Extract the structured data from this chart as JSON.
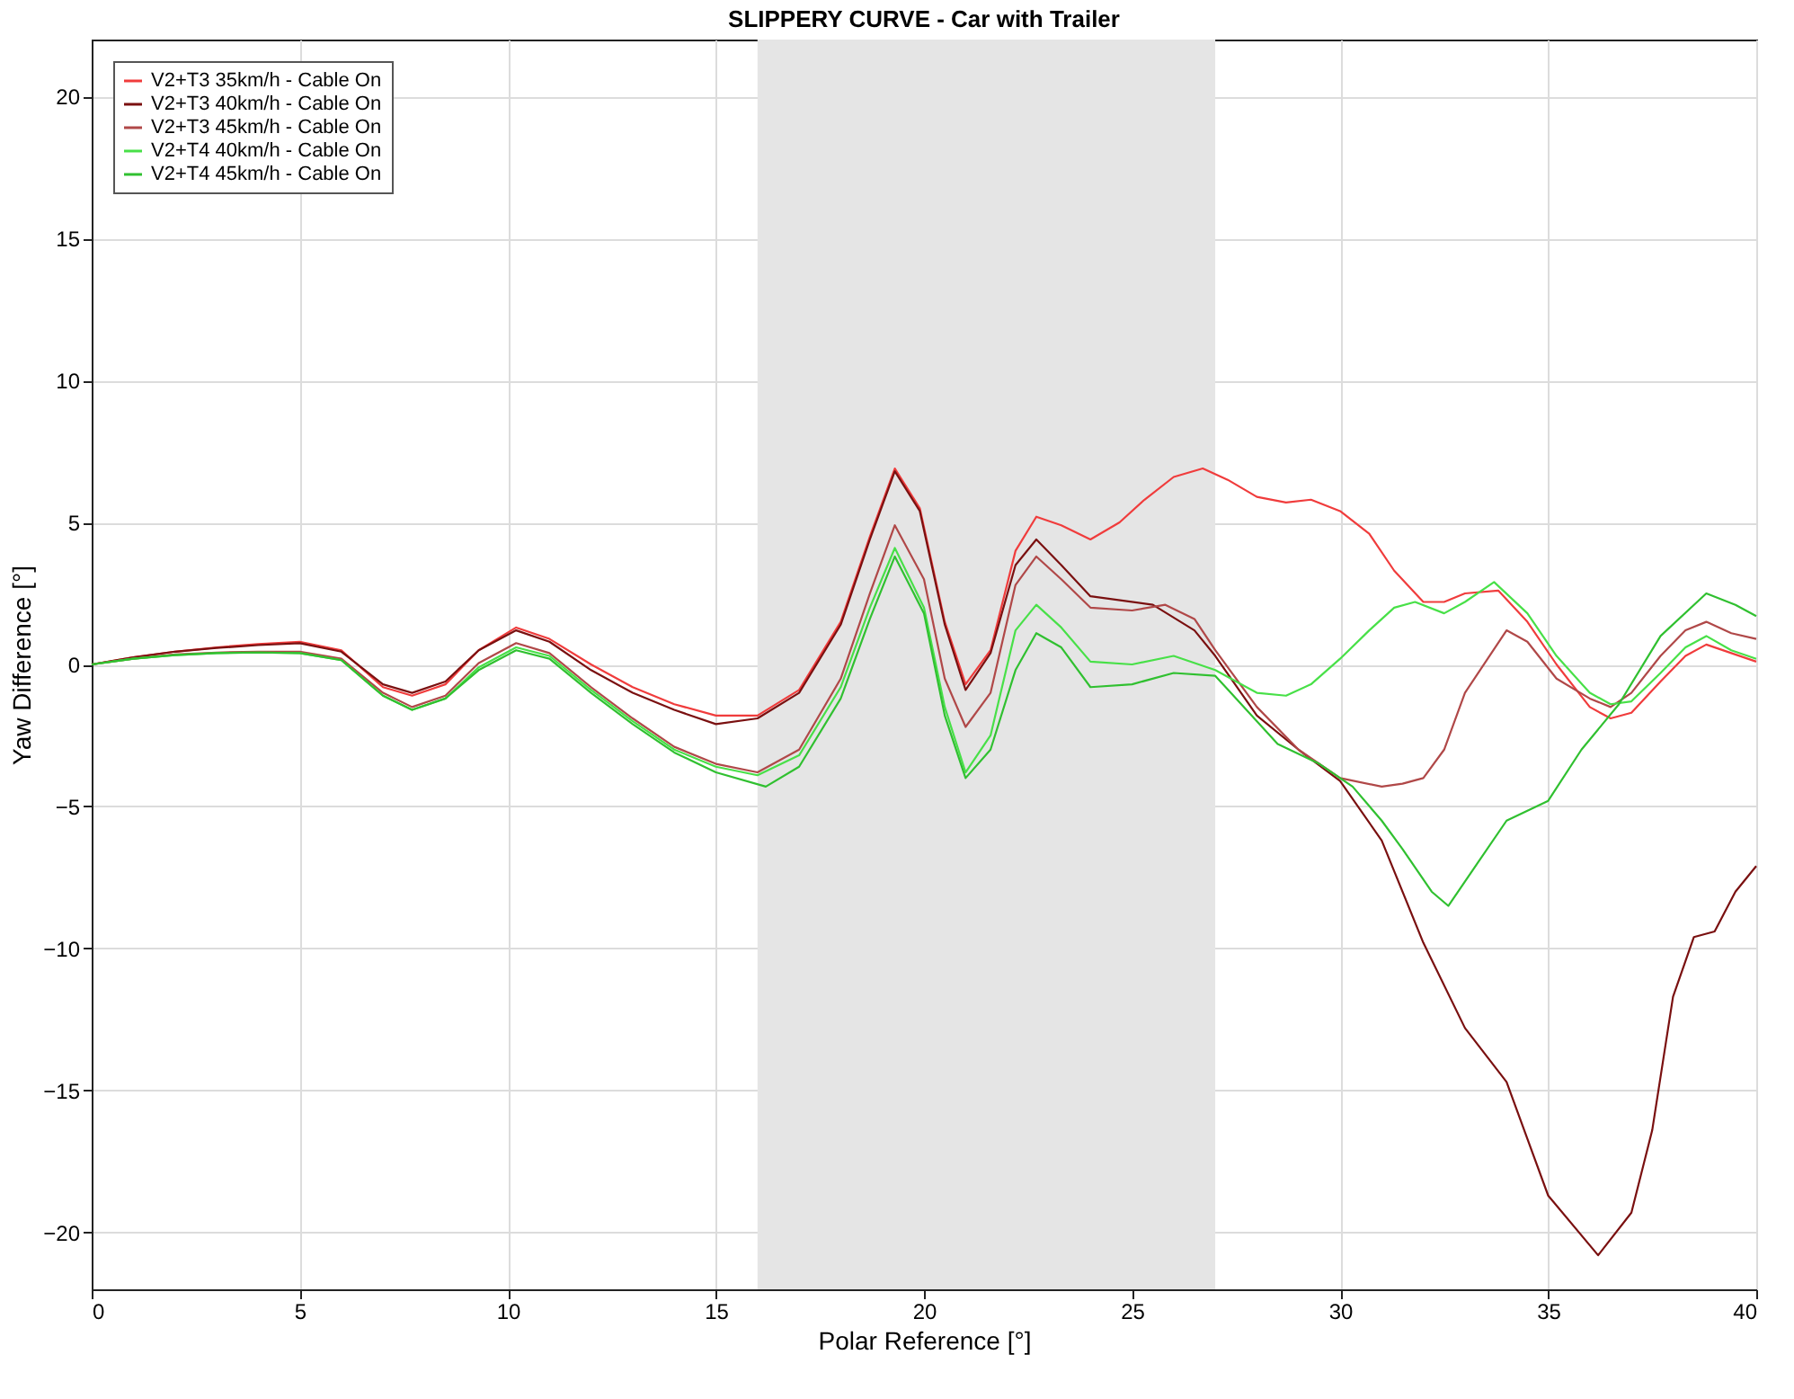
{
  "chart_data": {
    "type": "line",
    "title": "SLIPPERY CURVE - Car with Trailer",
    "xlabel": "Polar Reference [°]",
    "ylabel": "Yaw Difference [°]",
    "xlim": [
      0,
      40
    ],
    "xticks": [
      0,
      5,
      10,
      15,
      20,
      25,
      30,
      35,
      40
    ],
    "ylim": [
      -22,
      22
    ],
    "yticks": [
      -20,
      -15,
      -10,
      -5,
      0,
      5,
      10,
      15,
      20
    ],
    "grid": true,
    "legend": "top left",
    "line_style": "solid",
    "marker": "none",
    "bands": [
      {
        "axis": "x",
        "from": 16,
        "to": 27,
        "color": "#e5e5e5"
      }
    ],
    "series": [
      {
        "name": "V2+T3 35km/h - Cable On",
        "color": "#f03c3c",
        "x": [
          0,
          1,
          2,
          3,
          4,
          5,
          6,
          7,
          7.7,
          8.5,
          9.3,
          10.2,
          11,
          12,
          13,
          14,
          15,
          16,
          17,
          18,
          18.7,
          19.3,
          19.9,
          20.5,
          21,
          21.6,
          22.2,
          22.7,
          23.3,
          24,
          24.7,
          25.3,
          26,
          26.7,
          27.3,
          28,
          28.7,
          29.3,
          30,
          30.7,
          31.3,
          32,
          32.5,
          33,
          33.8,
          34.5,
          35.2,
          36,
          36.5,
          37,
          37.7,
          38.3,
          38.8,
          39.4,
          40
        ],
        "values": [
          0,
          0.25,
          0.45,
          0.6,
          0.72,
          0.8,
          0.5,
          -0.8,
          -1.1,
          -0.7,
          0.5,
          1.3,
          0.9,
          0.0,
          -0.8,
          -1.4,
          -1.8,
          -1.8,
          -0.9,
          1.5,
          4.5,
          6.9,
          5.5,
          1.5,
          -0.7,
          0.5,
          4.0,
          5.2,
          4.9,
          4.4,
          5.0,
          5.8,
          6.6,
          6.9,
          6.5,
          5.9,
          5.7,
          5.8,
          5.4,
          4.6,
          3.3,
          2.2,
          2.2,
          2.5,
          2.6,
          1.5,
          0.0,
          -1.5,
          -1.9,
          -1.7,
          -0.6,
          0.3,
          0.7,
          0.4,
          0.1
        ]
      },
      {
        "name": "V2+T3 40km/h - Cable On",
        "color": "#7a1010",
        "x": [
          0,
          1,
          2,
          3,
          4,
          5,
          6,
          7,
          7.7,
          8.5,
          9.3,
          10.2,
          11,
          12,
          13,
          14,
          15,
          16,
          17,
          18,
          18.7,
          19.3,
          19.9,
          20.5,
          21,
          21.6,
          22.2,
          22.7,
          23.3,
          24,
          25.5,
          26.5,
          27,
          28,
          29,
          30,
          31,
          32,
          33,
          34,
          35,
          36.2,
          37,
          37.5,
          38,
          38.5,
          39,
          39.5,
          40
        ],
        "values": [
          0,
          0.25,
          0.45,
          0.58,
          0.68,
          0.75,
          0.45,
          -0.7,
          -1.0,
          -0.6,
          0.5,
          1.2,
          0.8,
          -0.2,
          -1.0,
          -1.6,
          -2.1,
          -1.9,
          -1.0,
          1.4,
          4.4,
          6.8,
          5.4,
          1.4,
          -0.9,
          0.4,
          3.5,
          4.4,
          3.5,
          2.4,
          2.1,
          1.2,
          0.3,
          -1.8,
          -3.0,
          -4.1,
          -6.2,
          -9.8,
          -12.8,
          -14.7,
          -18.7,
          -20.8,
          -19.3,
          -16.4,
          -11.7,
          -9.6,
          -9.4,
          -8.0,
          -7.1
        ]
      },
      {
        "name": "V2+T3 45km/h - Cable On",
        "color": "#b04848",
        "x": [
          0,
          1,
          2,
          3,
          4,
          5,
          6,
          7,
          7.7,
          8.5,
          9.3,
          10.2,
          11,
          12,
          13,
          14,
          15,
          16,
          17,
          18,
          18.7,
          19.3,
          20,
          20.5,
          21,
          21.6,
          22.2,
          22.7,
          23.3,
          24,
          25,
          25.8,
          26.5,
          27,
          28,
          29,
          30,
          31,
          31.5,
          32,
          32.5,
          33,
          34,
          34.5,
          35.2,
          36,
          36.5,
          37,
          37.7,
          38.3,
          38.8,
          39.4,
          40
        ],
        "values": [
          0,
          0.2,
          0.35,
          0.42,
          0.45,
          0.45,
          0.2,
          -1.0,
          -1.5,
          -1.1,
          0.05,
          0.75,
          0.4,
          -0.8,
          -1.9,
          -2.9,
          -3.5,
          -3.8,
          -3.0,
          -0.5,
          2.5,
          4.9,
          3.0,
          -0.5,
          -2.2,
          -1.0,
          2.8,
          3.8,
          3.0,
          2.0,
          1.9,
          2.1,
          1.6,
          0.5,
          -1.5,
          -3.0,
          -4.0,
          -4.3,
          -4.2,
          -4.0,
          -3.0,
          -1.0,
          1.2,
          0.8,
          -0.5,
          -1.2,
          -1.5,
          -1.0,
          0.3,
          1.2,
          1.5,
          1.1,
          0.9
        ]
      },
      {
        "name": "V2+T4 40km/h - Cable On",
        "color": "#48e048",
        "x": [
          0,
          1,
          2,
          3,
          4,
          5,
          6,
          7,
          7.7,
          8.5,
          9.3,
          10.2,
          11,
          12,
          13,
          14,
          15,
          16,
          17,
          18,
          18.7,
          19.3,
          20,
          20.5,
          21,
          21.6,
          22.2,
          22.7,
          23.3,
          24,
          25,
          26,
          27,
          28,
          28.7,
          29.3,
          30,
          30.7,
          31.3,
          31.8,
          32.5,
          33,
          33.7,
          34.5,
          35.2,
          36,
          36.5,
          37,
          37.7,
          38.3,
          38.8,
          39.4,
          40
        ],
        "values": [
          0,
          0.2,
          0.33,
          0.4,
          0.42,
          0.4,
          0.15,
          -1.1,
          -1.6,
          -1.2,
          -0.1,
          0.6,
          0.3,
          -0.9,
          -2.0,
          -3.0,
          -3.6,
          -3.9,
          -3.2,
          -0.8,
          2.0,
          4.1,
          2.0,
          -1.5,
          -3.8,
          -2.5,
          1.2,
          2.1,
          1.3,
          0.1,
          0.0,
          0.3,
          -0.2,
          -1.0,
          -1.1,
          -0.7,
          0.2,
          1.2,
          2.0,
          2.2,
          1.8,
          2.2,
          2.9,
          1.8,
          0.3,
          -1.0,
          -1.4,
          -1.3,
          -0.3,
          0.6,
          1.0,
          0.5,
          0.2
        ]
      },
      {
        "name": "V2+T4 45km/h - Cable On",
        "color": "#30c030",
        "x": [
          0,
          1,
          2,
          3,
          4,
          5,
          6,
          7,
          7.7,
          8.5,
          9.3,
          10.2,
          11,
          12,
          13,
          14,
          15,
          16.2,
          17,
          18,
          18.7,
          19.3,
          20,
          20.5,
          21,
          21.6,
          22.2,
          22.7,
          23.3,
          24,
          25,
          26,
          27,
          28.5,
          29.5,
          30.3,
          31,
          31.5,
          32.2,
          32.6,
          33.3,
          34,
          35,
          35.8,
          36.7,
          37.7,
          38.8,
          39.5,
          40
        ],
        "values": [
          0,
          0.2,
          0.33,
          0.4,
          0.42,
          0.4,
          0.15,
          -1.1,
          -1.6,
          -1.2,
          -0.2,
          0.5,
          0.2,
          -1.0,
          -2.1,
          -3.1,
          -3.8,
          -4.3,
          -3.6,
          -1.2,
          1.6,
          3.8,
          1.8,
          -1.8,
          -4.0,
          -3.0,
          -0.2,
          1.1,
          0.6,
          -0.8,
          -0.7,
          -0.3,
          -0.4,
          -2.8,
          -3.5,
          -4.3,
          -5.5,
          -6.5,
          -8.0,
          -8.5,
          -7.0,
          -5.5,
          -4.8,
          -3.0,
          -1.4,
          1.0,
          2.5,
          2.1,
          1.7
        ]
      }
    ]
  }
}
